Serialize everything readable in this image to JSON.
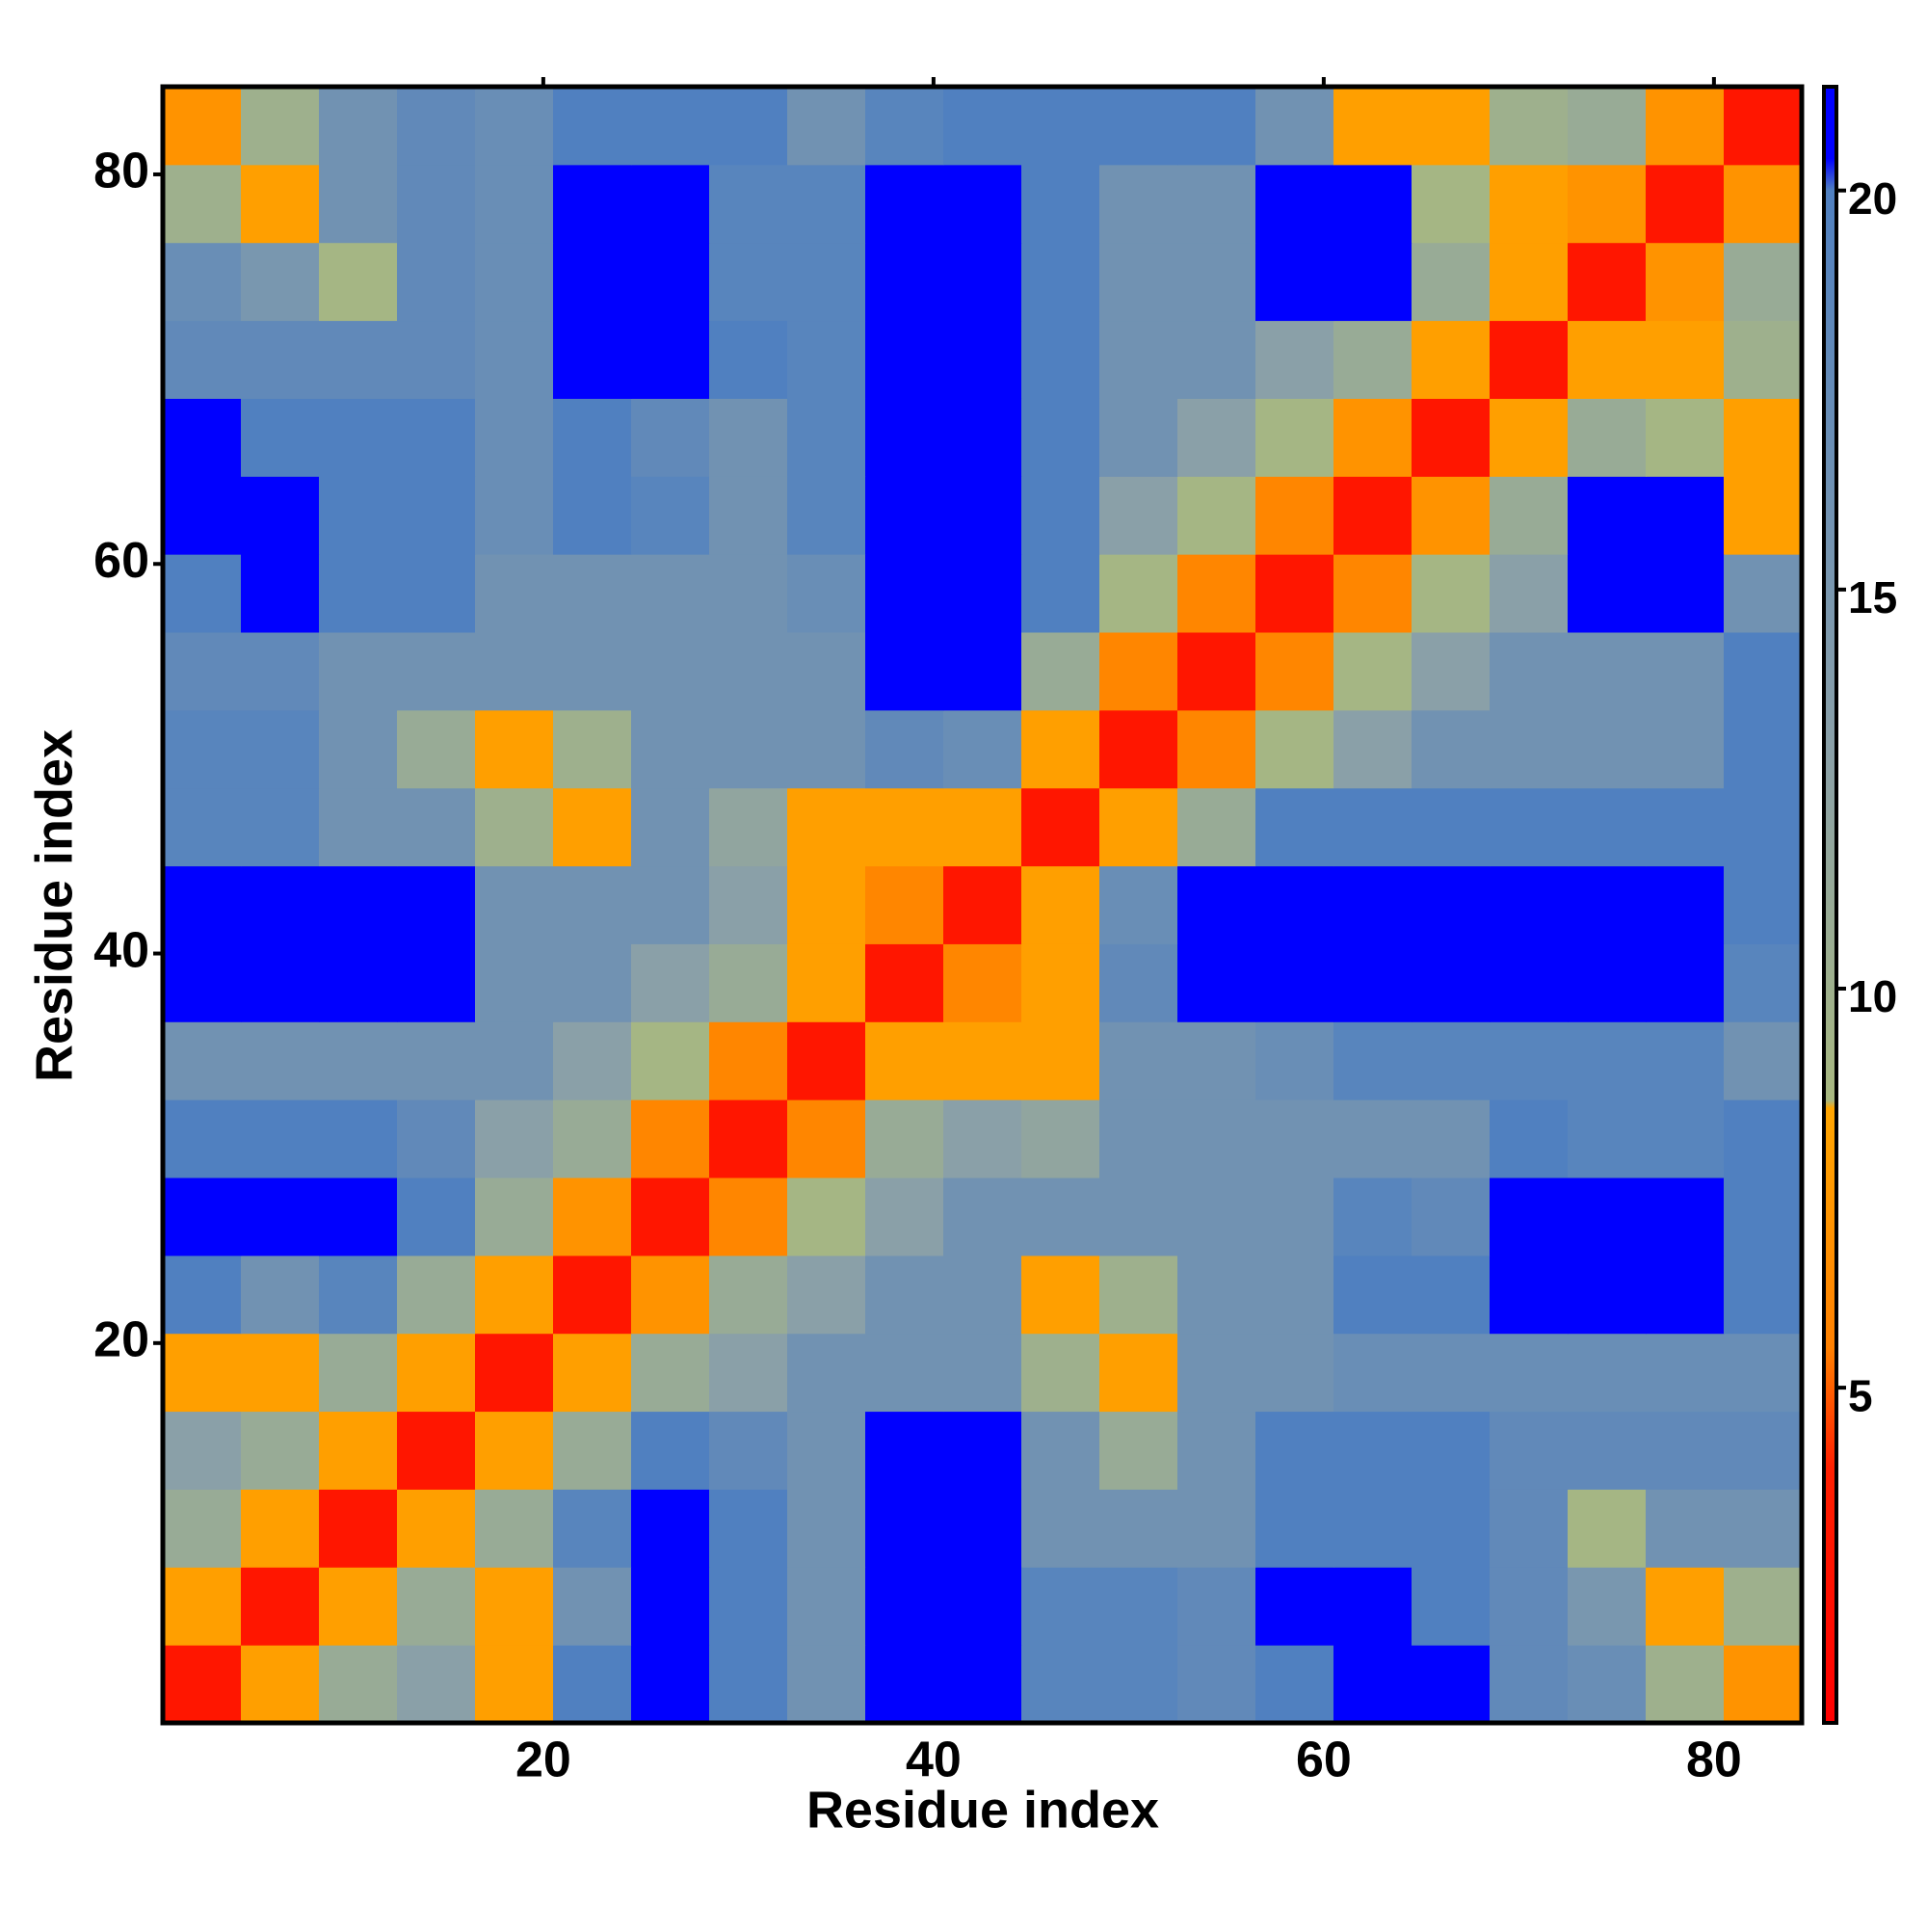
{
  "chart_data": {
    "type": "heatmap",
    "xlabel": "Residue index",
    "ylabel": "Residue index",
    "x": [
      2.5,
      6.5,
      10.5,
      14.5,
      18.5,
      22.5,
      26.5,
      30.5,
      34.5,
      38.5,
      42.5,
      46.5,
      50.5,
      54.5,
      58.5,
      62.5,
      66.5,
      70.5,
      74.5,
      78.5,
      82.5
    ],
    "y": [
      2.5,
      6.5,
      10.5,
      14.5,
      18.5,
      22.5,
      26.5,
      30.5,
      34.5,
      38.5,
      42.5,
      46.5,
      50.5,
      54.5,
      58.5,
      62.5,
      66.5,
      70.5,
      74.5,
      78.5,
      82.5
    ],
    "z": [
      [
        3,
        8,
        11,
        13,
        8,
        20,
        21,
        20,
        16,
        21,
        21,
        19,
        19,
        18,
        20,
        21,
        21,
        18,
        17,
        10,
        7
      ],
      [
        8,
        3,
        8,
        11,
        8,
        16,
        21,
        20,
        16,
        21,
        21,
        19,
        19,
        18,
        21,
        21,
        20,
        18,
        15,
        8,
        10
      ],
      [
        11,
        8,
        3,
        8,
        11,
        19,
        21,
        20,
        16,
        21,
        21,
        16,
        16,
        16,
        20,
        20,
        20,
        18,
        9,
        16,
        16
      ],
      [
        13,
        11,
        8,
        3,
        8,
        11,
        20,
        18,
        16,
        21,
        21,
        16,
        11,
        16,
        20,
        20,
        20,
        18,
        18,
        18,
        18
      ],
      [
        8,
        8,
        11,
        8,
        3,
        8,
        11,
        13,
        16,
        16,
        16,
        10,
        8,
        16,
        16,
        17,
        17,
        17,
        17,
        17,
        17
      ],
      [
        20,
        16,
        19,
        11,
        8,
        3,
        7,
        11,
        13,
        16,
        16,
        8,
        10,
        16,
        16,
        20,
        20,
        21,
        21,
        21,
        20
      ],
      [
        21,
        21,
        21,
        20,
        11,
        7,
        3,
        6,
        9,
        13,
        16,
        16,
        16,
        16,
        16,
        19,
        18,
        21,
        21,
        21,
        20
      ],
      [
        20,
        20,
        20,
        18,
        13,
        11,
        6,
        3,
        6,
        11,
        13,
        12,
        16,
        16,
        16,
        16,
        16,
        20,
        19,
        19,
        20
      ],
      [
        16,
        16,
        16,
        16,
        16,
        13,
        9,
        6,
        3,
        8,
        8,
        8,
        16,
        16,
        17,
        19,
        19,
        19,
        19,
        19,
        16
      ],
      [
        21,
        21,
        21,
        21,
        16,
        16,
        13,
        11,
        8,
        3,
        6,
        8,
        18,
        21,
        21,
        21,
        21,
        21,
        21,
        21,
        19
      ],
      [
        21,
        21,
        21,
        21,
        16,
        16,
        16,
        13,
        8,
        6,
        3,
        8,
        17,
        21,
        21,
        21,
        21,
        21,
        21,
        21,
        20
      ],
      [
        19,
        19,
        16,
        16,
        10,
        8,
        16,
        12,
        8,
        8,
        8,
        3,
        8,
        11,
        20,
        20,
        20,
        20,
        20,
        20,
        20
      ],
      [
        19,
        19,
        16,
        11,
        8,
        10,
        16,
        16,
        16,
        18,
        17,
        8,
        3,
        6,
        9,
        13,
        16,
        16,
        16,
        16,
        20
      ],
      [
        18,
        18,
        16,
        16,
        16,
        16,
        16,
        16,
        16,
        21,
        21,
        11,
        6,
        3,
        6,
        9,
        13,
        16,
        16,
        16,
        20
      ],
      [
        20,
        21,
        20,
        20,
        16,
        16,
        16,
        16,
        17,
        21,
        21,
        20,
        9,
        6,
        3,
        6,
        9,
        13,
        21,
        21,
        16
      ],
      [
        21,
        21,
        20,
        20,
        17,
        20,
        19,
        16,
        19,
        21,
        21,
        20,
        13,
        9,
        6,
        3,
        7,
        11,
        21,
        21,
        8
      ],
      [
        21,
        20,
        20,
        20,
        17,
        20,
        18,
        16,
        19,
        21,
        21,
        20,
        16,
        13,
        9,
        7,
        3,
        8,
        11,
        9,
        8
      ],
      [
        18,
        18,
        18,
        18,
        17,
        21,
        21,
        20,
        19,
        21,
        21,
        20,
        16,
        16,
        13,
        11,
        8,
        3,
        8,
        8,
        10
      ],
      [
        17,
        15,
        9,
        18,
        17,
        21,
        21,
        19,
        19,
        21,
        21,
        20,
        16,
        16,
        21,
        21,
        11,
        8,
        3,
        7,
        11
      ],
      [
        10,
        8,
        16,
        18,
        17,
        21,
        21,
        19,
        19,
        21,
        21,
        20,
        16,
        16,
        21,
        21,
        9,
        8,
        7,
        3,
        7
      ],
      [
        7,
        10,
        16,
        18,
        17,
        20,
        20,
        20,
        16,
        19,
        20,
        20,
        20,
        20,
        16,
        8,
        8,
        10,
        11,
        7,
        3
      ]
    ],
    "xlim": [
      0.5,
      84.5
    ],
    "ylim": [
      0.5,
      84.5
    ],
    "xticks": [
      20,
      40,
      60,
      80
    ],
    "yticks": [
      20,
      40,
      60,
      80
    ],
    "zlim": [
      0.8,
      21.3
    ],
    "zticks": [
      5,
      10,
      15,
      20
    ],
    "colorscale": [
      {
        "value": 0.8,
        "color": "#ff0000"
      },
      {
        "value": 4,
        "color": "#ff2000"
      },
      {
        "value": 5.5,
        "color": "#ff8000"
      },
      {
        "value": 8.5,
        "color": "#ffa500"
      },
      {
        "value": 8.6,
        "color": "#a8b880"
      },
      {
        "value": 13,
        "color": "#8aa0a8"
      },
      {
        "value": 20,
        "color": "#5080c0"
      },
      {
        "value": 20.4,
        "color": "#0000ff"
      },
      {
        "value": 21.3,
        "color": "#0000ff"
      }
    ]
  }
}
